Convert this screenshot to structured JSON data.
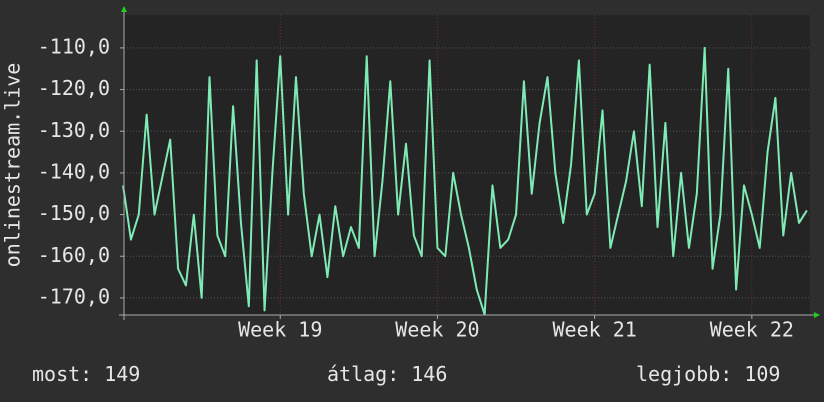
{
  "chart_data": {
    "type": "line",
    "y_label": "onlinestream.live",
    "x": [
      18,
      18.05,
      18.1,
      18.15,
      18.2,
      18.25,
      18.3,
      18.35,
      18.4,
      18.45,
      18.5,
      18.55,
      18.6,
      18.65,
      18.7,
      18.75,
      18.8,
      18.85,
      18.9,
      18.95,
      19,
      19.05,
      19.1,
      19.15,
      19.2,
      19.25,
      19.3,
      19.35,
      19.4,
      19.45,
      19.5,
      19.55,
      19.6,
      19.65,
      19.7,
      19.75,
      19.8,
      19.85,
      19.9,
      19.95,
      20,
      20.05,
      20.1,
      20.15,
      20.2,
      20.25,
      20.3,
      20.35,
      20.4,
      20.45,
      20.5,
      20.55,
      20.6,
      20.65,
      20.7,
      20.75,
      20.8,
      20.85,
      20.9,
      20.95,
      21,
      21.05,
      21.1,
      21.15,
      21.2,
      21.25,
      21.3,
      21.35,
      21.4,
      21.45,
      21.5,
      21.55,
      21.6,
      21.65,
      21.7,
      21.75,
      21.8,
      21.85,
      21.9,
      21.95,
      22,
      22.05,
      22.1,
      22.15,
      22.2,
      22.25,
      22.3,
      22.35
    ],
    "series": [
      {
        "color": "#7eeab4",
        "values": [
          -143,
          -156,
          -150,
          -126,
          -150,
          -141,
          -132,
          -163,
          -167,
          -150,
          -170,
          -117,
          -155,
          -160,
          -124,
          -152,
          -172,
          -113,
          -173,
          -140,
          -112,
          -150,
          -117,
          -145,
          -160,
          -150,
          -165,
          -148,
          -160,
          -153,
          -158,
          -112,
          -160,
          -142,
          -118,
          -150,
          -133,
          -155,
          -160,
          -113,
          -158,
          -160,
          -140,
          -150,
          -158,
          -168,
          -174,
          -143,
          -158,
          -156,
          -150,
          -118,
          -145,
          -128,
          -117,
          -140,
          -152,
          -138,
          -113,
          -150,
          -145,
          -125,
          -158,
          -150,
          -142,
          -130,
          -148,
          -114,
          -153,
          -128,
          -160,
          -140,
          -158,
          -145,
          -110,
          -163,
          -150,
          -115,
          -168,
          -143,
          -150,
          -158,
          -135,
          -122,
          -155,
          -140,
          -152,
          -149
        ]
      }
    ],
    "xlim": [
      18.006,
      22.37
    ],
    "xticks": [
      {
        "value": 19,
        "label": "Week 19"
      },
      {
        "value": 20,
        "label": "Week 20"
      },
      {
        "value": 21,
        "label": "Week 21"
      },
      {
        "value": 22,
        "label": "Week 22"
      }
    ],
    "ylim": [
      -174.1,
      -102.1
    ],
    "yticks": [
      {
        "value": -110,
        "label": "-110,0"
      },
      {
        "value": -120,
        "label": "-120,0"
      },
      {
        "value": -130,
        "label": "-130,0"
      },
      {
        "value": -140,
        "label": "-140,0"
      },
      {
        "value": -150,
        "label": "-150,0"
      },
      {
        "value": -160,
        "label": "-160,0"
      },
      {
        "value": -170,
        "label": "-170,0"
      }
    ],
    "grid": true,
    "stats": [
      {
        "label": "most:",
        "value": 149
      },
      {
        "label": "átlag:",
        "value": 146
      },
      {
        "label": "legjobb:",
        "value": 109
      }
    ]
  }
}
